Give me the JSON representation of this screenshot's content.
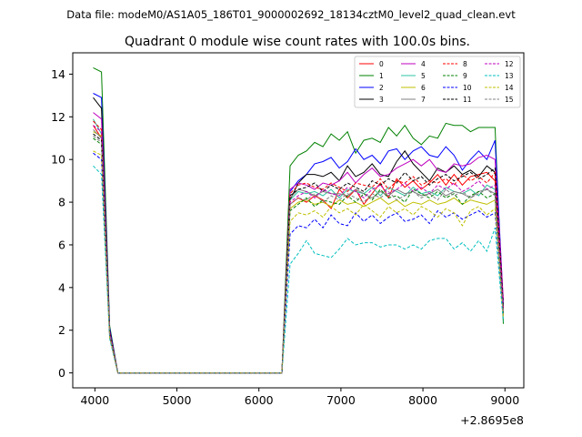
{
  "chart_data": {
    "type": "line",
    "suptitle": "Data file: modeM0/AS1A05_186T01_9000002692_18134cztM0_level2_quad_clean.evt",
    "title": "Quadrant 0 module wise count rates with 100.0s bins.",
    "xlabel": "",
    "ylabel": "",
    "x_offset_label": "+2.8695e8",
    "xlim": [
      3730,
      9230
    ],
    "ylim": [
      -0.7,
      15.0
    ],
    "xticks": [
      4000,
      5000,
      6000,
      7000,
      8000,
      9000
    ],
    "yticks": [
      0,
      2,
      4,
      6,
      8,
      10,
      12,
      14
    ],
    "grid": false,
    "legend_position": "top-right",
    "legend_columns": 4,
    "x_before_gap": [
      3980,
      4080,
      4180,
      4280
    ],
    "gap_zero_x": [
      4380,
      4480,
      4580,
      4680,
      4780,
      4880,
      4980,
      5080,
      5180,
      5280,
      5380,
      5480,
      5580,
      5680,
      5780,
      5880,
      5980,
      6080,
      6180
    ],
    "x_after_gap": [
      6280,
      6380,
      6480,
      6580,
      6680,
      6780,
      6880,
      6980,
      7080,
      7180,
      7280,
      7380,
      7480,
      7580,
      7680,
      7780,
      7880,
      7980,
      8080,
      8180,
      8280,
      8380,
      8480,
      8580,
      8680,
      8780,
      8880,
      8980
    ],
    "series": [
      {
        "name": "0",
        "color": "#ff0000",
        "dash": false,
        "before_gap": [
          11.6,
          11.0,
          1.7,
          0.0
        ],
        "after_gap": [
          0.0,
          7.9,
          8.2,
          8.0,
          8.3,
          8.1,
          7.7,
          8.6,
          8.2,
          8.6,
          7.9,
          8.4,
          8.9,
          8.2,
          9.1,
          8.7,
          9.0,
          8.6,
          8.9,
          9.3,
          8.8,
          9.3,
          8.8,
          9.2,
          9.3,
          9.4,
          9.0,
          3.0
        ]
      },
      {
        "name": "1",
        "color": "#008000",
        "dash": false,
        "before_gap": [
          14.3,
          14.1,
          2.2,
          0.0
        ],
        "after_gap": [
          0.0,
          9.7,
          10.2,
          10.4,
          10.8,
          10.6,
          11.2,
          10.9,
          11.3,
          10.3,
          10.9,
          11.0,
          10.8,
          11.5,
          11.1,
          11.6,
          11.0,
          10.7,
          11.1,
          11.0,
          11.7,
          11.6,
          11.6,
          11.3,
          11.5,
          11.5,
          11.5,
          2.3
        ]
      },
      {
        "name": "2",
        "color": "#0000ff",
        "dash": false,
        "before_gap": [
          13.1,
          12.9,
          2.1,
          0.0
        ],
        "after_gap": [
          0.0,
          8.5,
          9.0,
          9.3,
          9.8,
          9.9,
          10.1,
          9.6,
          9.9,
          10.5,
          10.0,
          10.2,
          9.8,
          10.4,
          10.5,
          10.0,
          10.4,
          10.6,
          10.2,
          10.1,
          10.6,
          10.2,
          9.5,
          10.0,
          10.4,
          10.0,
          10.9,
          3.2
        ]
      },
      {
        "name": "3",
        "color": "#000000",
        "dash": false,
        "before_gap": [
          12.9,
          12.4,
          2.0,
          0.0
        ],
        "after_gap": [
          0.0,
          8.1,
          8.9,
          9.3,
          9.3,
          9.2,
          9.4,
          9.0,
          9.7,
          9.2,
          9.4,
          9.8,
          9.3,
          9.2,
          9.9,
          10.4,
          9.8,
          9.4,
          9.0,
          9.6,
          9.4,
          9.7,
          9.3,
          9.5,
          9.2,
          9.7,
          9.4,
          3.0
        ]
      },
      {
        "name": "4",
        "color": "#bf00bf",
        "dash": false,
        "before_gap": [
          12.2,
          11.9,
          1.9,
          0.0
        ],
        "after_gap": [
          0.0,
          8.6,
          8.9,
          8.8,
          8.6,
          8.9,
          8.8,
          9.0,
          9.4,
          8.9,
          9.3,
          9.6,
          9.2,
          9.3,
          9.6,
          9.8,
          10.0,
          9.7,
          10.0,
          9.5,
          9.4,
          9.8,
          9.7,
          9.8,
          10.1,
          10.2,
          10.0,
          3.4
        ]
      },
      {
        "name": "5",
        "color": "#2ec4a0",
        "dash": false,
        "before_gap": [
          11.9,
          11.2,
          1.8,
          0.0
        ],
        "after_gap": [
          0.0,
          8.1,
          8.5,
          8.4,
          8.5,
          8.3,
          8.6,
          8.2,
          8.6,
          8.5,
          8.4,
          8.7,
          8.3,
          8.7,
          8.5,
          8.3,
          8.7,
          8.4,
          8.5,
          8.3,
          8.7,
          8.5,
          8.4,
          8.6,
          8.3,
          8.8,
          8.6,
          2.8
        ]
      },
      {
        "name": "6",
        "color": "#bfbf00",
        "dash": false,
        "before_gap": [
          11.3,
          11.1,
          1.8,
          0.0
        ],
        "after_gap": [
          0.0,
          7.7,
          8.0,
          8.1,
          7.9,
          8.0,
          7.8,
          8.1,
          7.9,
          8.0,
          7.8,
          8.0,
          8.2,
          7.9,
          8.1,
          7.8,
          8.0,
          7.9,
          8.1,
          7.9,
          8.0,
          8.2,
          7.9,
          8.1,
          8.0,
          7.9,
          8.1,
          2.7
        ]
      },
      {
        "name": "7",
        "color": "#808080",
        "dash": false,
        "before_gap": [
          11.4,
          11.0,
          1.8,
          0.0
        ],
        "after_gap": [
          0.0,
          8.2,
          8.6,
          8.5,
          8.3,
          8.5,
          8.4,
          8.4,
          8.3,
          8.6,
          8.4,
          8.2,
          8.5,
          8.3,
          8.6,
          8.4,
          8.5,
          8.3,
          8.4,
          8.6,
          8.3,
          8.5,
          8.4,
          8.2,
          8.5,
          8.6,
          8.4,
          2.8
        ]
      },
      {
        "name": "8",
        "color": "#ff0000",
        "dash": true,
        "before_gap": [
          11.8,
          11.4,
          1.9,
          0.0
        ],
        "after_gap": [
          0.0,
          8.4,
          8.8,
          8.9,
          8.7,
          8.6,
          8.9,
          8.7,
          8.5,
          8.9,
          8.8,
          8.7,
          9.1,
          8.6,
          9.0,
          8.9,
          9.2,
          8.8,
          9.0,
          8.9,
          9.1,
          8.8,
          9.3,
          9.0,
          9.2,
          8.9,
          9.4,
          3.0
        ]
      },
      {
        "name": "9",
        "color": "#008000",
        "dash": true,
        "before_gap": [
          11.0,
          10.7,
          1.8,
          0.0
        ],
        "after_gap": [
          0.0,
          7.6,
          7.9,
          8.2,
          7.8,
          8.1,
          8.0,
          7.9,
          8.3,
          8.0,
          8.4,
          8.1,
          8.6,
          8.2,
          8.3,
          8.0,
          8.6,
          8.4,
          8.2,
          8.5,
          8.2,
          8.4,
          7.9,
          8.3,
          8.5,
          8.2,
          8.4,
          2.8
        ]
      },
      {
        "name": "10",
        "color": "#0000ff",
        "dash": true,
        "before_gap": [
          10.3,
          10.0,
          1.7,
          0.0
        ],
        "after_gap": [
          0.0,
          6.5,
          6.9,
          6.8,
          7.2,
          6.8,
          7.4,
          7.0,
          6.9,
          7.5,
          7.1,
          7.4,
          7.0,
          7.3,
          7.5,
          7.1,
          7.2,
          7.4,
          7.0,
          7.6,
          7.3,
          7.5,
          7.2,
          7.4,
          7.6,
          7.3,
          7.5,
          2.6
        ]
      },
      {
        "name": "11",
        "color": "#000000",
        "dash": true,
        "before_gap": [
          11.2,
          10.9,
          1.8,
          0.0
        ],
        "after_gap": [
          0.0,
          8.3,
          8.6,
          8.7,
          8.9,
          8.5,
          8.8,
          8.6,
          8.9,
          8.7,
          8.5,
          9.0,
          8.8,
          9.1,
          8.9,
          9.4,
          9.0,
          9.2,
          8.8,
          9.1,
          9.3,
          9.0,
          9.2,
          9.4,
          9.1,
          9.3,
          9.6,
          3.1
        ]
      },
      {
        "name": "12",
        "color": "#bf00bf",
        "dash": true,
        "before_gap": [
          11.6,
          11.3,
          1.9,
          0.0
        ],
        "after_gap": [
          0.0,
          8.0,
          8.3,
          8.5,
          8.2,
          8.6,
          8.4,
          8.3,
          8.7,
          8.5,
          8.2,
          8.6,
          8.8,
          8.4,
          8.6,
          8.9,
          8.5,
          8.7,
          8.4,
          8.8,
          8.6,
          8.9,
          8.5,
          8.7,
          9.0,
          8.6,
          8.8,
          2.9
        ]
      },
      {
        "name": "13",
        "color": "#00bfbf",
        "dash": true,
        "before_gap": [
          9.7,
          9.3,
          1.6,
          0.0
        ],
        "after_gap": [
          0.0,
          5.1,
          5.6,
          6.2,
          5.6,
          5.5,
          5.4,
          5.8,
          6.3,
          6.0,
          6.1,
          6.1,
          5.9,
          6.0,
          6.0,
          5.8,
          6.0,
          5.8,
          6.2,
          6.3,
          6.3,
          5.8,
          6.1,
          5.7,
          6.2,
          5.7,
          6.8,
          2.4
        ]
      },
      {
        "name": "14",
        "color": "#bfbf00",
        "dash": true,
        "before_gap": [
          10.4,
          10.2,
          1.7,
          0.0
        ],
        "after_gap": [
          0.0,
          7.1,
          7.5,
          7.4,
          7.6,
          7.3,
          7.8,
          7.5,
          7.7,
          7.4,
          7.9,
          7.6,
          7.3,
          7.8,
          7.5,
          7.7,
          7.4,
          7.8,
          7.6,
          7.3,
          7.7,
          7.5,
          6.9,
          7.6,
          7.8,
          7.4,
          7.7,
          2.6
        ]
      },
      {
        "name": "15",
        "color": "#808080",
        "dash": true,
        "before_gap": [
          11.1,
          10.8,
          1.8,
          0.0
        ],
        "after_gap": [
          0.0,
          7.9,
          8.2,
          8.1,
          8.4,
          8.0,
          8.3,
          8.1,
          8.4,
          8.2,
          8.0,
          8.4,
          8.2,
          8.5,
          8.1,
          8.3,
          8.5,
          8.2,
          8.4,
          8.1,
          8.6,
          8.3,
          8.5,
          8.2,
          8.4,
          8.6,
          8.3,
          2.8
        ]
      }
    ]
  }
}
